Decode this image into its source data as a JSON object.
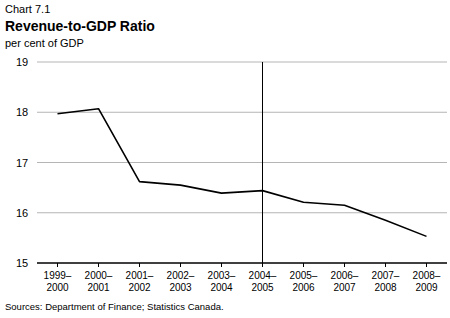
{
  "chart_data": {
    "type": "line",
    "figure_label": "Chart 7.1",
    "title": "Revenue-to-GDP Ratio",
    "y_label": "per cent of GDP",
    "source": "Sources: Department of Finance; Statistics Canada.",
    "categories": [
      "1999–2000",
      "2000–2001",
      "2001–2002",
      "2002–2003",
      "2003–2004",
      "2004–2005",
      "2005–2006",
      "2006–2007",
      "2007–2008",
      "2008–2009"
    ],
    "series": [
      {
        "name": "Revenue-to-GDP Ratio",
        "color": "#000000",
        "values": [
          17.97,
          18.07,
          16.62,
          16.55,
          16.39,
          16.44,
          16.21,
          16.15,
          15.85,
          15.53
        ]
      }
    ],
    "annotations": [
      {
        "x": "2004–2005"
      }
    ],
    "ylim": [
      15,
      19
    ],
    "yticks": [
      15,
      16,
      17,
      18,
      19
    ],
    "grid": true
  }
}
